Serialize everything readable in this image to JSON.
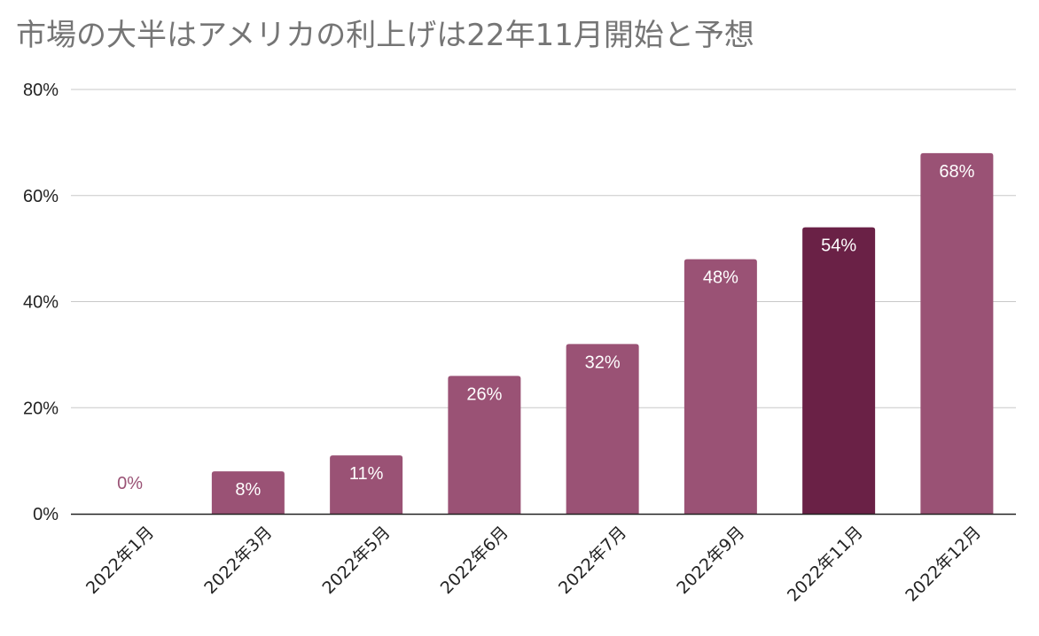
{
  "chart_data": {
    "type": "bar",
    "title": "市場の大半はアメリカの利上げは22年11月開始と予想",
    "categories": [
      "2022年1月",
      "2022年3月",
      "2022年5月",
      "2022年6月",
      "2022年7月",
      "2022年9月",
      "2022年11月",
      "2022年12月"
    ],
    "values": [
      0,
      8,
      11,
      26,
      32,
      48,
      54,
      68
    ],
    "data_labels": [
      "0%",
      "8%",
      "11%",
      "26%",
      "32%",
      "48%",
      "54%",
      "68%"
    ],
    "highlight_index": 6,
    "ylim": [
      0,
      80
    ],
    "yticks": [
      0,
      20,
      40,
      60,
      80
    ],
    "ytick_labels": [
      "0%",
      "20%",
      "40%",
      "60%",
      "80%"
    ],
    "xlabel": "",
    "ylabel": "",
    "grid": true,
    "legend": "none",
    "colors": {
      "bar": "#9a5275",
      "highlight": "#6a2146",
      "label_inside": "#ffffff",
      "label_outside": "#9a5275",
      "title": "#757575",
      "grid": "#c8c8c8",
      "axis": "#222222"
    }
  }
}
